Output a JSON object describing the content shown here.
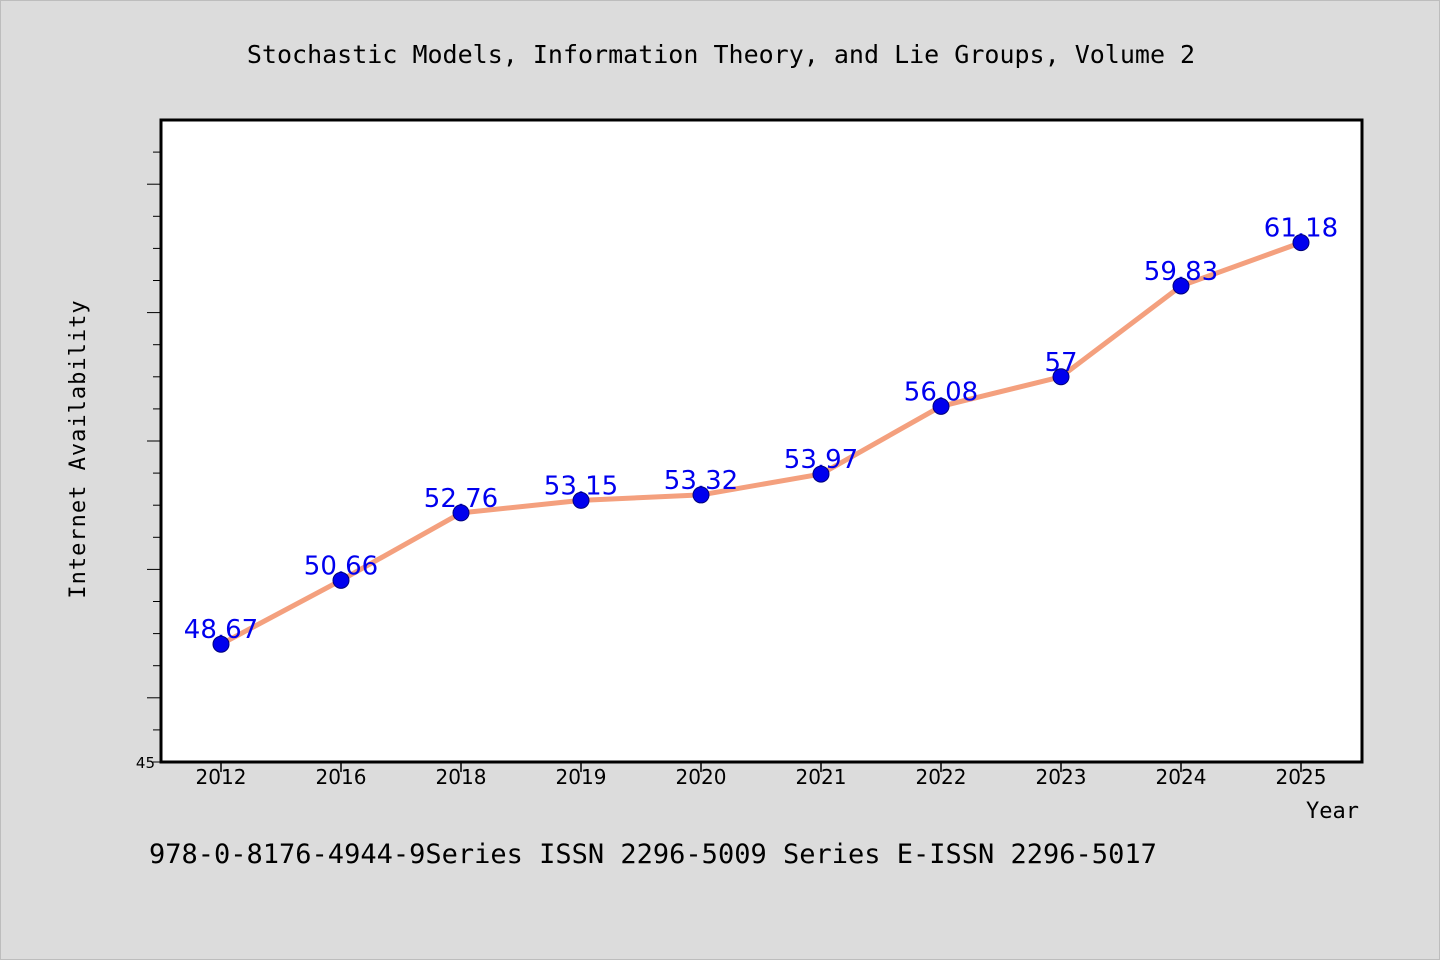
{
  "chart_data": {
    "type": "line",
    "title": "Stochastic Models, Information Theory, and Lie Groups, Volume 2",
    "xlabel": "Year",
    "ylabel": "Internet Availability",
    "footer": "978-0-8176-4944-9Series ISSN 2296-5009 Series E-ISSN 2296-5017",
    "categories": [
      "2012",
      "2016",
      "2018",
      "2019",
      "2020",
      "2021",
      "2022",
      "2023",
      "2024",
      "2025"
    ],
    "series": [
      {
        "values": [
          48.67,
          50.66,
          52.76,
          53.15,
          53.32,
          53.97,
          56.08,
          57,
          59.83,
          61.18
        ],
        "labels": [
          "48.67",
          "50.66",
          "52.76",
          "53.15",
          "53.32",
          "53.97",
          "56.08",
          "57",
          "59.83",
          "61.18"
        ],
        "line_color": "#f4a07e",
        "marker_color": "#0000ee",
        "label_color": "#0000ee"
      }
    ],
    "ylim": [
      45,
      65
    ],
    "ytick_labels": [
      "45"
    ],
    "grid": false,
    "legend": "none"
  }
}
